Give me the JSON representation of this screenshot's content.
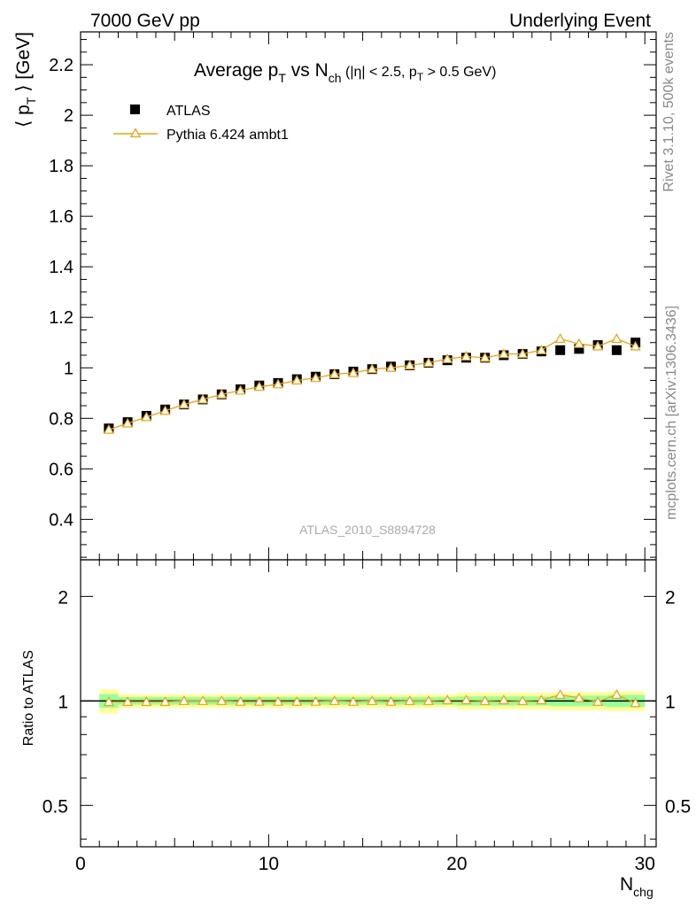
{
  "header": {
    "left": "7000 GeV pp",
    "right": "Underlying Event"
  },
  "side_labels": {
    "rivet": "Rivet 3.1.10,  500k events",
    "mcplots": "mcplots.cern.ch [arXiv:1306.3436]"
  },
  "colors": {
    "data_marker": "#000000",
    "mc_line": "#e8a317",
    "band_outer": "#ffff99",
    "band_inner": "#99ff99"
  },
  "chart_data": [
    {
      "type": "scatter",
      "title": {
        "parts": [
          "Average p",
          "T",
          " vs N",
          "ch",
          " (|η| < 2.5, p",
          "T",
          " > 0.5 GeV)"
        ]
      },
      "ylabel": {
        "main": "⟨ p",
        "sub": "T",
        "tail": " ⟩ [GeV]"
      },
      "watermark": "ATLAS_2010_S8894728",
      "xlim": [
        0,
        30.6
      ],
      "ylim": [
        0.24,
        2.33
      ],
      "y_ticks": [
        "0.4",
        "0.6",
        "0.8",
        "1",
        "1.2",
        "1.4",
        "1.6",
        "1.8",
        "2",
        "2.2"
      ],
      "legend_position": "top-left",
      "x": [
        1.5,
        2.5,
        3.5,
        4.5,
        5.5,
        6.5,
        7.5,
        8.5,
        9.5,
        10.5,
        11.5,
        12.5,
        13.5,
        14.5,
        15.5,
        16.5,
        17.5,
        18.5,
        19.5,
        20.5,
        21.5,
        22.5,
        23.5,
        24.5,
        25.5,
        26.5,
        27.5,
        28.5,
        29.5
      ],
      "series": [
        {
          "name": "ATLAS",
          "marker": "square",
          "values": [
            0.76,
            0.785,
            0.81,
            0.835,
            0.855,
            0.875,
            0.895,
            0.915,
            0.93,
            0.94,
            0.955,
            0.965,
            0.975,
            0.985,
            0.995,
            1.005,
            1.01,
            1.02,
            1.03,
            1.04,
            1.04,
            1.05,
            1.055,
            1.065,
            1.07,
            1.075,
            1.09,
            1.07,
            1.1
          ]
        },
        {
          "name": "Pythia 6.424 ambt1",
          "marker": "triangle",
          "values": [
            0.755,
            0.78,
            0.805,
            0.83,
            0.855,
            0.875,
            0.895,
            0.91,
            0.925,
            0.935,
            0.95,
            0.96,
            0.975,
            0.98,
            0.995,
            1.0,
            1.01,
            1.02,
            1.035,
            1.045,
            1.04,
            1.055,
            1.055,
            1.07,
            1.115,
            1.095,
            1.085,
            1.115,
            1.085
          ]
        }
      ]
    },
    {
      "type": "line",
      "ylabel": "Ratio to ATLAS",
      "xlabel": {
        "main": "N",
        "sub": "chg"
      },
      "xlim": [
        0,
        30.6
      ],
      "x_ticks": [
        "0",
        "10",
        "20",
        "30"
      ],
      "ylim": [
        0.38,
        2.55
      ],
      "log_y": true,
      "y_ticks": [
        "0.5",
        "1",
        "2"
      ],
      "reference": 1,
      "x": [
        1.5,
        2.5,
        3.5,
        4.5,
        5.5,
        6.5,
        7.5,
        8.5,
        9.5,
        10.5,
        11.5,
        12.5,
        13.5,
        14.5,
        15.5,
        16.5,
        17.5,
        18.5,
        19.5,
        20.5,
        21.5,
        22.5,
        23.5,
        24.5,
        25.5,
        26.5,
        27.5,
        28.5,
        29.5
      ],
      "ratio": [
        0.993,
        0.994,
        0.994,
        0.994,
        1.0,
        1.0,
        1.0,
        0.995,
        0.995,
        0.995,
        0.995,
        0.995,
        1.0,
        0.995,
        1.0,
        0.995,
        1.0,
        1.0,
        1.005,
        1.005,
        1.0,
        1.005,
        1.0,
        1.005,
        1.042,
        1.019,
        0.995,
        1.042,
        0.986
      ],
      "band_outer_halfwidth": [
        0.08,
        0.045,
        0.045,
        0.045,
        0.045,
        0.045,
        0.045,
        0.045,
        0.045,
        0.045,
        0.045,
        0.045,
        0.045,
        0.045,
        0.045,
        0.045,
        0.045,
        0.045,
        0.045,
        0.055,
        0.055,
        0.055,
        0.055,
        0.055,
        0.06,
        0.06,
        0.06,
        0.065,
        0.065
      ],
      "band_inner_halfwidth": [
        0.045,
        0.025,
        0.025,
        0.025,
        0.025,
        0.025,
        0.025,
        0.025,
        0.025,
        0.025,
        0.025,
        0.025,
        0.025,
        0.025,
        0.025,
        0.025,
        0.025,
        0.025,
        0.025,
        0.03,
        0.03,
        0.03,
        0.03,
        0.03,
        0.035,
        0.035,
        0.035,
        0.04,
        0.04
      ]
    }
  ]
}
